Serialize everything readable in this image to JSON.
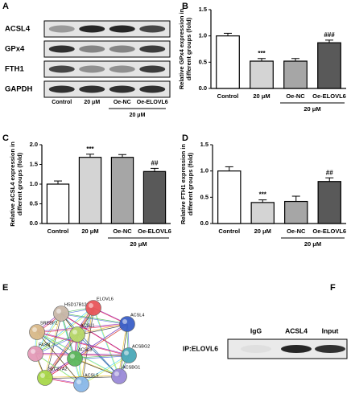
{
  "blot_a": {
    "panel_label": "A",
    "rows": [
      "ACSL4",
      "GPx4",
      "FTH1",
      "GAPDH"
    ],
    "lanes": [
      "Control",
      "20 μM",
      "Oe-NC",
      "Oe-ELOVL6"
    ],
    "group_label": "20 μM"
  },
  "chart_data": [
    {
      "type": "bar",
      "panel_label": "B",
      "ylabel": [
        "Relative GPx4 expression in",
        "different groups (fold)"
      ],
      "categories": [
        "Control",
        "20 μM",
        "Oe-NC",
        "Oe-ELOVL6"
      ],
      "values": [
        1.0,
        0.52,
        0.52,
        0.87
      ],
      "errors": [
        0.05,
        0.05,
        0.05,
        0.05
      ],
      "colors": [
        "#ffffff",
        "#d4d4d4",
        "#a6a6a6",
        "#595959"
      ],
      "ylim": [
        0,
        1.5
      ],
      "yticks": [
        {
          "value": 0,
          "label": "0.0"
        },
        0.5,
        {
          "value": 1,
          "label": "1.0"
        },
        1.5
      ],
      "annotations": [
        {
          "category": "20 μM",
          "text": "***"
        },
        {
          "category": "Oe-ELOVL6",
          "text": "###"
        }
      ],
      "groups": [
        {
          "label": "20 μM",
          "categories": [
            "Oe-NC",
            "Oe-ELOVL6"
          ]
        }
      ]
    },
    {
      "type": "bar",
      "panel_label": "C",
      "ylabel": [
        "Relative ACSL4 expression in",
        "different groups (fold)"
      ],
      "categories": [
        "Control",
        "20 μM",
        "Oe-NC",
        "Oe-ELOVL6"
      ],
      "values": [
        1.0,
        1.68,
        1.68,
        1.32
      ],
      "errors": [
        0.08,
        0.08,
        0.07,
        0.08
      ],
      "colors": [
        "#ffffff",
        "#d4d4d4",
        "#a6a6a6",
        "#595959"
      ],
      "ylim": [
        0,
        2
      ],
      "yticks": [
        {
          "value": 0,
          "label": "0.0"
        },
        0.5,
        {
          "value": 1,
          "label": "1.0"
        },
        1.5,
        {
          "value": 2,
          "label": "2.0"
        }
      ],
      "annotations": [
        {
          "category": "20 μM",
          "text": "***"
        },
        {
          "category": "Oe-ELOVL6",
          "text": "##"
        }
      ],
      "groups": [
        {
          "label": "20 μM",
          "categories": [
            "Oe-NC",
            "Oe-ELOVL6"
          ]
        }
      ]
    },
    {
      "type": "bar",
      "panel_label": "D",
      "ylabel": [
        "Relative FTH1 expression in",
        "different groups (fold)"
      ],
      "categories": [
        "Control",
        "20 μM",
        "Oe-NC",
        "Oe-ELOVL6"
      ],
      "values": [
        1.0,
        0.4,
        0.42,
        0.8
      ],
      "errors": [
        0.08,
        0.05,
        0.1,
        0.07
      ],
      "colors": [
        "#ffffff",
        "#d4d4d4",
        "#a6a6a6",
        "#595959"
      ],
      "ylim": [
        0,
        1.5
      ],
      "yticks": [
        {
          "value": 0,
          "label": "0.0"
        },
        0.5,
        {
          "value": 1,
          "label": "1.0"
        },
        1.5
      ],
      "annotations": [
        {
          "category": "20 μM",
          "text": "***"
        },
        {
          "category": "Oe-ELOVL6",
          "text": "##"
        }
      ],
      "groups": [
        {
          "label": "20 μM",
          "categories": [
            "Oe-NC",
            "Oe-ELOVL6"
          ]
        }
      ]
    }
  ],
  "network_e": {
    "panel_label": "E",
    "nodes": [
      {
        "label": "ELOVL6",
        "color": "#e8565a"
      },
      {
        "label": "HSD17B12",
        "color": "#c9b8a8"
      },
      {
        "label": "ACSL4",
        "color": "#3a5fc8"
      },
      {
        "label": "SREBF2",
        "color": "#d9b98a"
      },
      {
        "label": "ACSL1",
        "color": "#b8d86a"
      },
      {
        "label": "FASN",
        "color": "#e49ab8"
      },
      {
        "label": "ACSL3",
        "color": "#5cb85c"
      },
      {
        "label": "ACSBG2",
        "color": "#4aa8b8"
      },
      {
        "label": "SLC27A2",
        "color": "#a8d84a"
      },
      {
        "label": "ACSL5",
        "color": "#8ab8e8"
      },
      {
        "label": "ACSBG1",
        "color": "#9a8ad8"
      }
    ]
  },
  "blot_f": {
    "panel_label": "F",
    "row_label": "IP:ELOVL6",
    "lanes": [
      "IgG",
      "ACSL4",
      "Input"
    ]
  }
}
